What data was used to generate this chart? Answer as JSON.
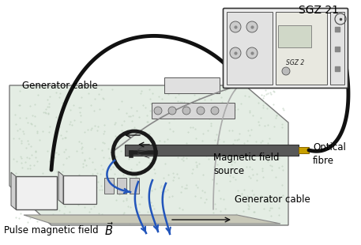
{
  "bg_color": "#ffffff",
  "platform_color": "#e4ede4",
  "device_bg": "#f2f2f2",
  "device_border": "#444444",
  "cable_black": "#111111",
  "cable_thin": "#999999",
  "probe_color": "#606060",
  "probe_tip_color": "#c8a000",
  "blue_color": "#2255bb",
  "label_gen_top": "Generator cable",
  "label_gen_bot": "Generator cable",
  "label_optical": "Optical\nfibre",
  "label_magnetic": "Magnetic field\nsource",
  "label_pulse": "Pulse magnetic field",
  "label_sgz": "SGZ 21",
  "fontsize": 8.5,
  "figsize": [
    4.57,
    3.1
  ],
  "dpi": 100
}
